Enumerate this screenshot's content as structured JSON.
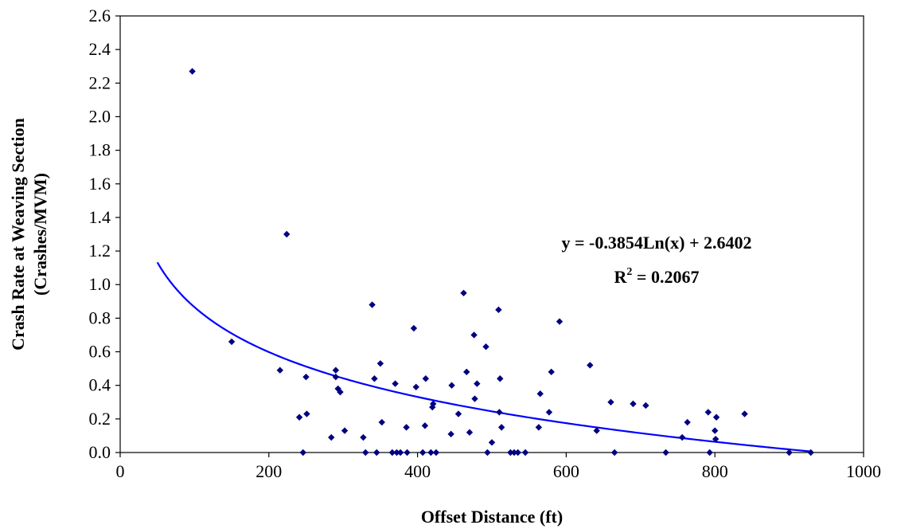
{
  "chart_data": {
    "type": "scatter",
    "title": "",
    "xlabel": "Offset Distance (ft)",
    "ylabel_line1": "Crash Rate at Weaving Section",
    "ylabel_line2": "(Crashes/MVM)",
    "xlim": [
      0,
      1000
    ],
    "ylim": [
      0,
      2.6
    ],
    "x_ticks": [
      "0",
      "200",
      "400",
      "600",
      "800",
      "1000"
    ],
    "y_ticks": [
      "0.0",
      "0.2",
      "0.4",
      "0.6",
      "0.8",
      "1.0",
      "1.2",
      "1.4",
      "1.6",
      "1.8",
      "2.0",
      "2.2",
      "2.4",
      "2.6"
    ],
    "grid": false,
    "legend": "none",
    "marker_color": "#000080",
    "trendline_color": "#0000ff",
    "trendline": {
      "type": "logarithmic",
      "a": -0.3854,
      "b": 2.6402,
      "x_range": [
        50,
        930
      ],
      "equation_text": "y = -0.3854Ln(x) + 2.6402",
      "r2_prefix": "R",
      "r2_sup": "2",
      "r2_suffix": " = 0.2067"
    },
    "points": [
      [
        97,
        2.27
      ],
      [
        224,
        1.3
      ],
      [
        150,
        0.66
      ],
      [
        215,
        0.49
      ],
      [
        250,
        0.45
      ],
      [
        251,
        0.23
      ],
      [
        241,
        0.21
      ],
      [
        246,
        0.0
      ],
      [
        284,
        0.09
      ],
      [
        290,
        0.49
      ],
      [
        290,
        0.45
      ],
      [
        293,
        0.38
      ],
      [
        296,
        0.36
      ],
      [
        302,
        0.13
      ],
      [
        327,
        0.09
      ],
      [
        330,
        0.0
      ],
      [
        339,
        0.88
      ],
      [
        342,
        0.44
      ],
      [
        345,
        0.0
      ],
      [
        350,
        0.53
      ],
      [
        352,
        0.18
      ],
      [
        366,
        0.0
      ],
      [
        370,
        0.41
      ],
      [
        372,
        0.0
      ],
      [
        377,
        0.0
      ],
      [
        386,
        0.0
      ],
      [
        385,
        0.15
      ],
      [
        395,
        0.74
      ],
      [
        398,
        0.39
      ],
      [
        407,
        0.0
      ],
      [
        410,
        0.16
      ],
      [
        411,
        0.44
      ],
      [
        418,
        0.0
      ],
      [
        420,
        0.27
      ],
      [
        421,
        0.29
      ],
      [
        425,
        0.0
      ],
      [
        445,
        0.11
      ],
      [
        446,
        0.4
      ],
      [
        455,
        0.23
      ],
      [
        462,
        0.95
      ],
      [
        466,
        0.48
      ],
      [
        470,
        0.12
      ],
      [
        476,
        0.7
      ],
      [
        477,
        0.32
      ],
      [
        480,
        0.41
      ],
      [
        492,
        0.63
      ],
      [
        494,
        0.0
      ],
      [
        500,
        0.06
      ],
      [
        509,
        0.85
      ],
      [
        510,
        0.24
      ],
      [
        511,
        0.44
      ],
      [
        513,
        0.15
      ],
      [
        525,
        0.0
      ],
      [
        530,
        0.0
      ],
      [
        535,
        0.0
      ],
      [
        545,
        0.0
      ],
      [
        563,
        0.15
      ],
      [
        565,
        0.35
      ],
      [
        577,
        0.24
      ],
      [
        580,
        0.48
      ],
      [
        591,
        0.78
      ],
      [
        632,
        0.52
      ],
      [
        641,
        0.13
      ],
      [
        660,
        0.3
      ],
      [
        665,
        0.0
      ],
      [
        690,
        0.29
      ],
      [
        707,
        0.28
      ],
      [
        734,
        0.0
      ],
      [
        756,
        0.09
      ],
      [
        763,
        0.18
      ],
      [
        791,
        0.24
      ],
      [
        793,
        0.0
      ],
      [
        800,
        0.13
      ],
      [
        801,
        0.08
      ],
      [
        802,
        0.21
      ],
      [
        840,
        0.23
      ],
      [
        900,
        0.0
      ],
      [
        929,
        0.0
      ]
    ]
  }
}
